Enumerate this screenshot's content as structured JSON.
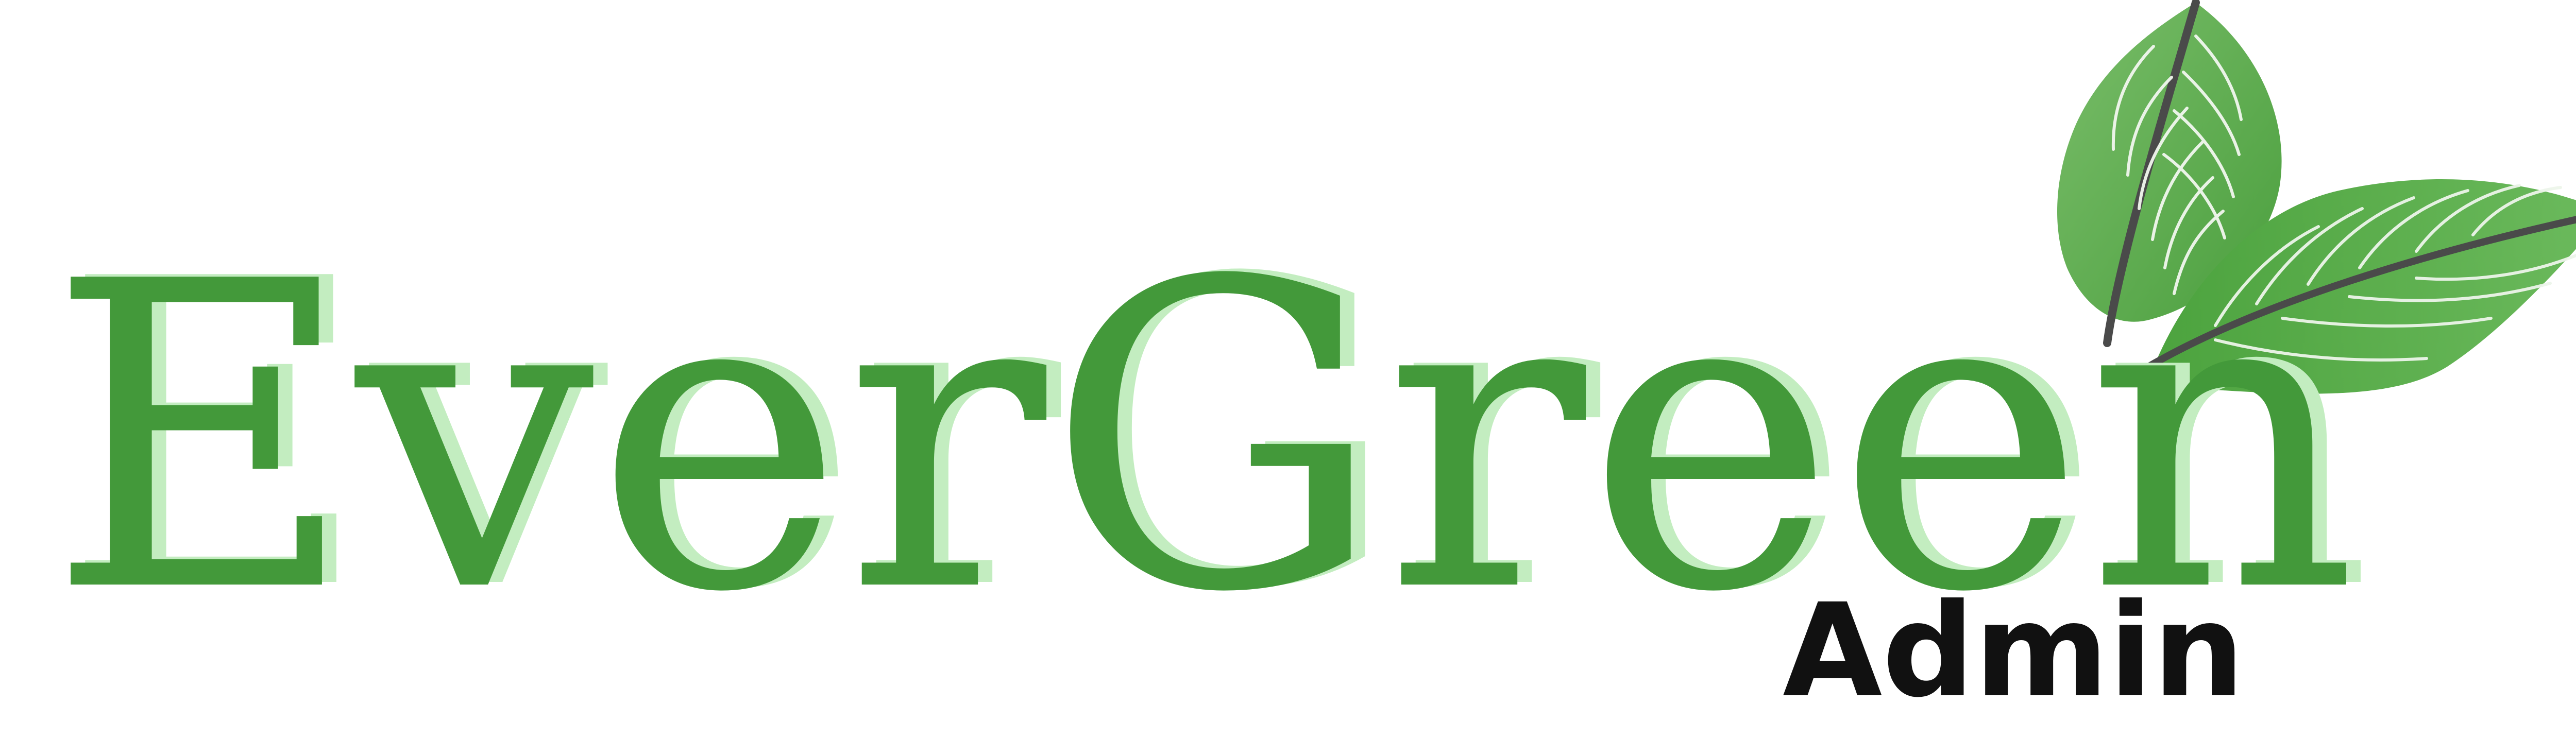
{
  "logo": {
    "wordmark": "EverGreen",
    "subtitle": "Admin"
  },
  "colors": {
    "primary_green": "#43993A",
    "shadow_green": "#C3EDC0",
    "leaf_light": "#6DB55F",
    "leaf_mid": "#55AA46",
    "leaf_dark": "#3F8F33",
    "stem": "#4A4A4A",
    "vein": "#F2F7EF",
    "subtitle_text": "#111111"
  },
  "icons": {
    "brand_mark": "two-leaves-icon"
  }
}
